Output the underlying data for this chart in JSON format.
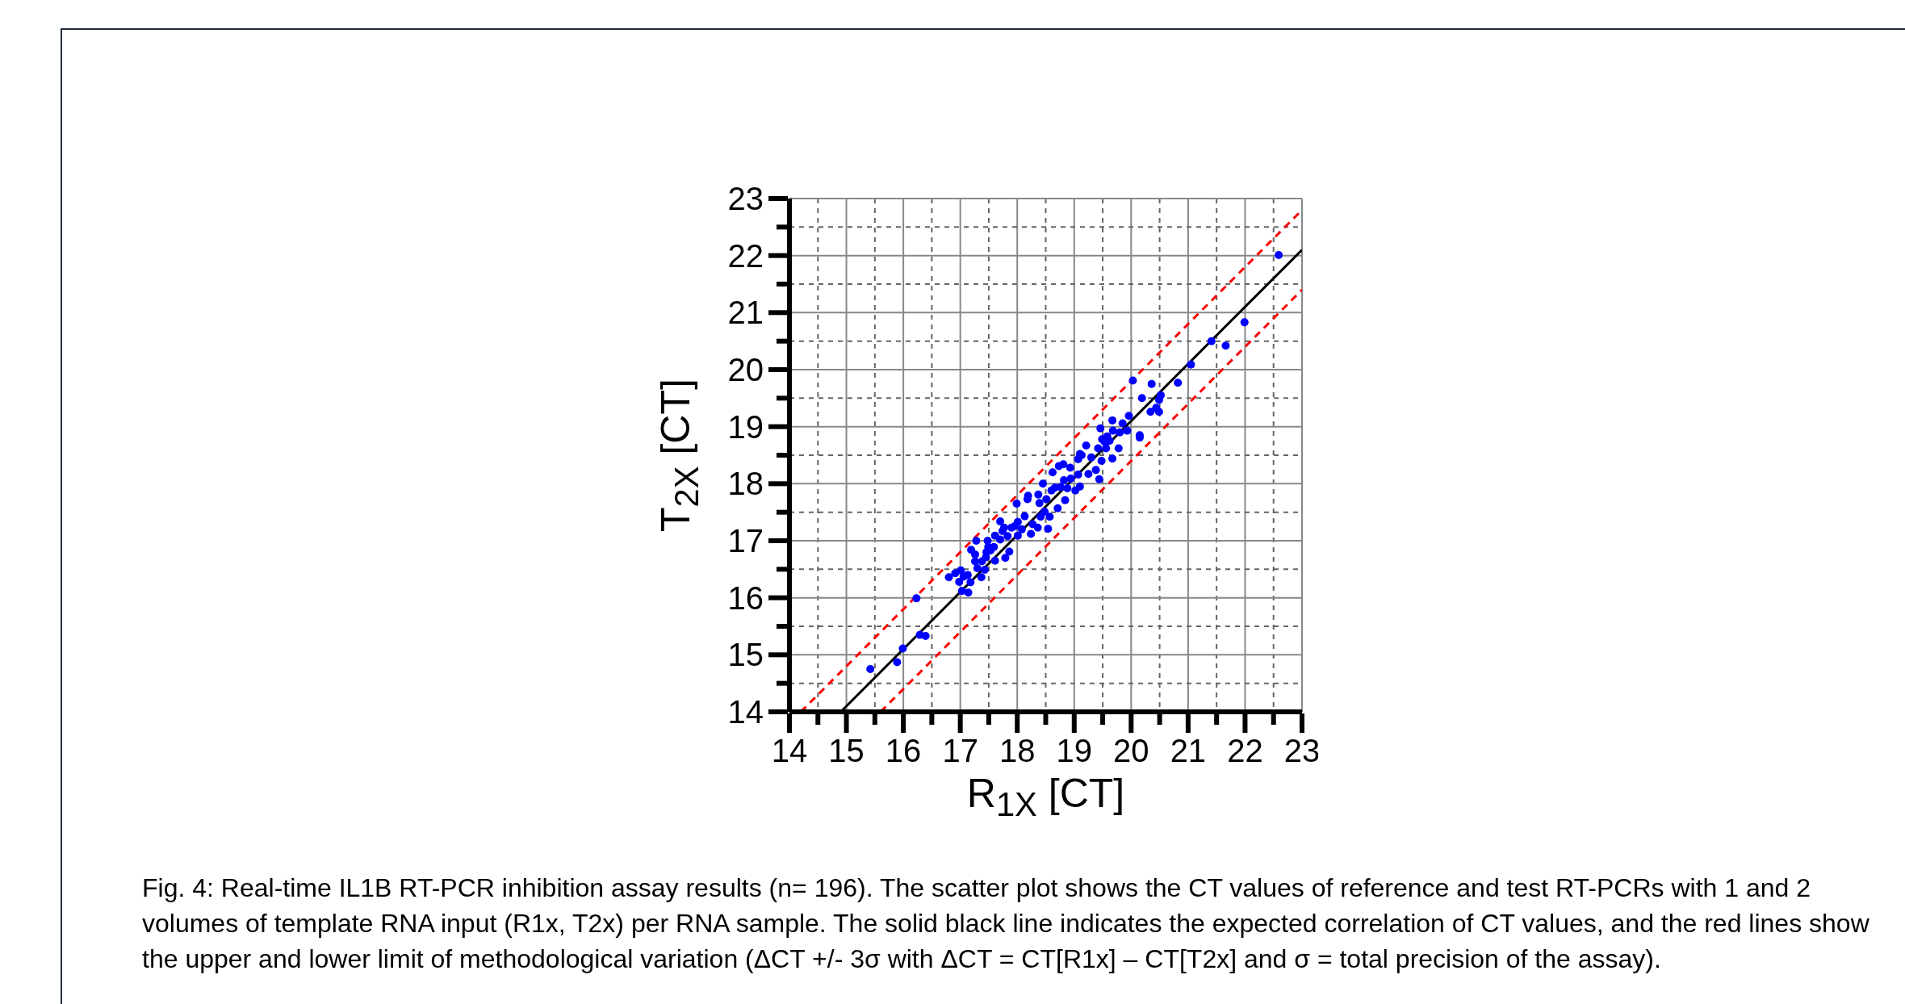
{
  "chart_data": {
    "type": "scatter",
    "xlabel": "R$_{1X}$ [CT]",
    "ylabel": "T$_{2X}$ [CT]",
    "xlim": [
      14,
      23
    ],
    "ylim": [
      14,
      23
    ],
    "xticks": [
      14,
      {
        "value": 14.5,
        "label": null
      },
      15,
      {
        "value": 15.5,
        "label": null
      },
      16,
      {
        "value": 16.5,
        "label": null
      },
      17,
      {
        "value": 17.5,
        "label": null
      },
      18,
      {
        "value": 18.5,
        "label": null
      },
      19,
      {
        "value": 19.5,
        "label": null
      },
      20,
      {
        "value": 20.5,
        "label": null
      },
      21,
      {
        "value": 21.5,
        "label": null
      },
      22,
      {
        "value": 22.5,
        "label": null
      },
      23
    ],
    "yticks": [
      14,
      {
        "value": 14.5,
        "label": null
      },
      15,
      {
        "value": 15.5,
        "label": null
      },
      16,
      {
        "value": 16.5,
        "label": null
      },
      17,
      {
        "value": 17.5,
        "label": null
      },
      18,
      {
        "value": 18.5,
        "label": null
      },
      19,
      {
        "value": 19.5,
        "label": null
      },
      20,
      {
        "value": 20.5,
        "label": null
      },
      21,
      {
        "value": 21.5,
        "label": null
      },
      22,
      {
        "value": 22.5,
        "label": null
      },
      23
    ],
    "grid": true,
    "legend": false,
    "series": [
      {
        "marker": "circle",
        "color": "#0000ff",
        "x": [
          15.42,
          15.89,
          15.99,
          16.23,
          16.29,
          16.39,
          16.8,
          16.91,
          17.01,
          16.98,
          17.03,
          17.14,
          17.18,
          17.13,
          17.19,
          17.26,
          17.28,
          17.26,
          17.37,
          17.38,
          17.43,
          17.46,
          17.48,
          17.49,
          17.61,
          17.61,
          17.59,
          17.7,
          17.7,
          17.79,
          17.77,
          17.86,
          17.83,
          17.9,
          17.99,
          18.01,
          18.01,
          18.13,
          18.19,
          18.24,
          18.27,
          18.36,
          18.37,
          18.41,
          18.45,
          18.48,
          18.54,
          18.57,
          18.62,
          18.66,
          18.71,
          18.73,
          18.81,
          18.84,
          18.88,
          18.93,
          19.02,
          19.07,
          19.1,
          19.1,
          19.21,
          19.25,
          19.3,
          19.38,
          19.44,
          19.42,
          19.46,
          19.48,
          19.49,
          19.56,
          19.58,
          19.67,
          19.67,
          19.68,
          19.78,
          19.85,
          19.93,
          19.96,
          20.03,
          20.15,
          20.19,
          20.34,
          20.36,
          20.44,
          20.49,
          20.49,
          20.52,
          20.82,
          21.05,
          21.41,
          21.66,
          21.99,
          22.59,
          17.06,
          17.3,
          17.45,
          17.53,
          17.74,
          17.96,
          18.08,
          18.18,
          18.39,
          18.51,
          18.6,
          18.76,
          18.82,
          18.94,
          19.07,
          19.13,
          19.53,
          19.62,
          19.8,
          20.15
        ],
        "values": [
          14.75,
          14.87,
          15.11,
          15.99,
          15.35,
          15.33,
          16.36,
          16.43,
          16.48,
          16.28,
          16.12,
          16.09,
          16.27,
          16.4,
          16.84,
          16.76,
          17.0,
          16.64,
          16.36,
          16.64,
          16.49,
          16.8,
          17.0,
          16.89,
          16.65,
          17.09,
          16.89,
          17.34,
          17.02,
          16.7,
          17.23,
          16.81,
          17.08,
          17.23,
          17.65,
          17.33,
          17.09,
          17.43,
          17.79,
          17.12,
          17.29,
          17.23,
          17.81,
          17.42,
          18.0,
          17.51,
          17.21,
          17.42,
          18.2,
          17.93,
          17.57,
          18.31,
          18.34,
          17.71,
          17.92,
          18.28,
          17.88,
          18.43,
          17.95,
          18.52,
          18.67,
          18.17,
          18.46,
          18.24,
          18.08,
          18.62,
          18.97,
          18.4,
          18.78,
          18.62,
          18.83,
          19.11,
          18.44,
          18.93,
          18.62,
          19.06,
          18.93,
          19.19,
          19.81,
          18.85,
          19.5,
          19.26,
          19.75,
          19.33,
          19.47,
          19.26,
          19.55,
          19.77,
          20.09,
          20.5,
          20.42,
          20.83,
          22.01,
          16.37,
          16.52,
          16.71,
          16.83,
          17.17,
          17.26,
          17.2,
          17.73,
          17.66,
          17.73,
          17.88,
          17.94,
          18.06,
          18.09,
          18.16,
          18.5,
          18.74,
          18.75,
          18.9,
          18.81
        ]
      },
      {
        "type": "line",
        "color": "#000000",
        "line_style": "solid",
        "x": [
          14.9,
          23
        ],
        "values": [
          14,
          22.1
        ]
      },
      {
        "type": "line",
        "color": "#ff0000",
        "line_style": "dashed",
        "x": [
          14.2,
          23
        ],
        "values": [
          14,
          22.8
        ]
      },
      {
        "type": "line",
        "color": "#ff0000",
        "line_style": "dashed",
        "x": [
          15.6,
          23
        ],
        "values": [
          14,
          21.4
        ]
      }
    ],
    "annotations": [
      "Fig. 4: Real-time IL1B RT-PCR inhibition assay results (n= 196). The scatter plot shows the CT values of reference and test RT-PCRs with 1 and 2 volumes of template RNA input (R1x, T2x) per RNA sample. The solid black line indicates the expected correlation of CT values, and the red lines show the upper and lower limit of methodological variation (ΔCT +/- 3σ with ΔCT = CT[R1x] – CT[T2x] and σ = total precision of the assay)."
    ]
  }
}
